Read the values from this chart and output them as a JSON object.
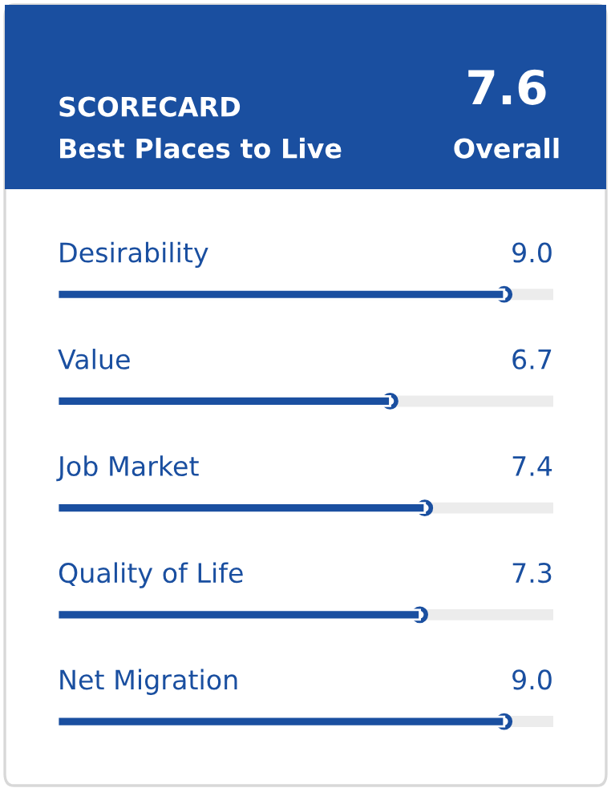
{
  "chart_data": {
    "type": "bar",
    "orientation": "horizontal",
    "title": "SCORECARD",
    "subtitle": "Best Places to Live",
    "annotations": [
      "7.6",
      "Overall"
    ],
    "categories": [
      "Desirability",
      "Value",
      "Job Market",
      "Quality of Life",
      "Net Migration"
    ],
    "values": [
      9.0,
      6.7,
      7.4,
      7.3,
      9.0
    ],
    "value_labels": [
      "9.0",
      "6.7",
      "7.4",
      "7.3",
      "9.0"
    ],
    "color": "#1a4fa0",
    "legend": false,
    "tick_labels": false
  }
}
